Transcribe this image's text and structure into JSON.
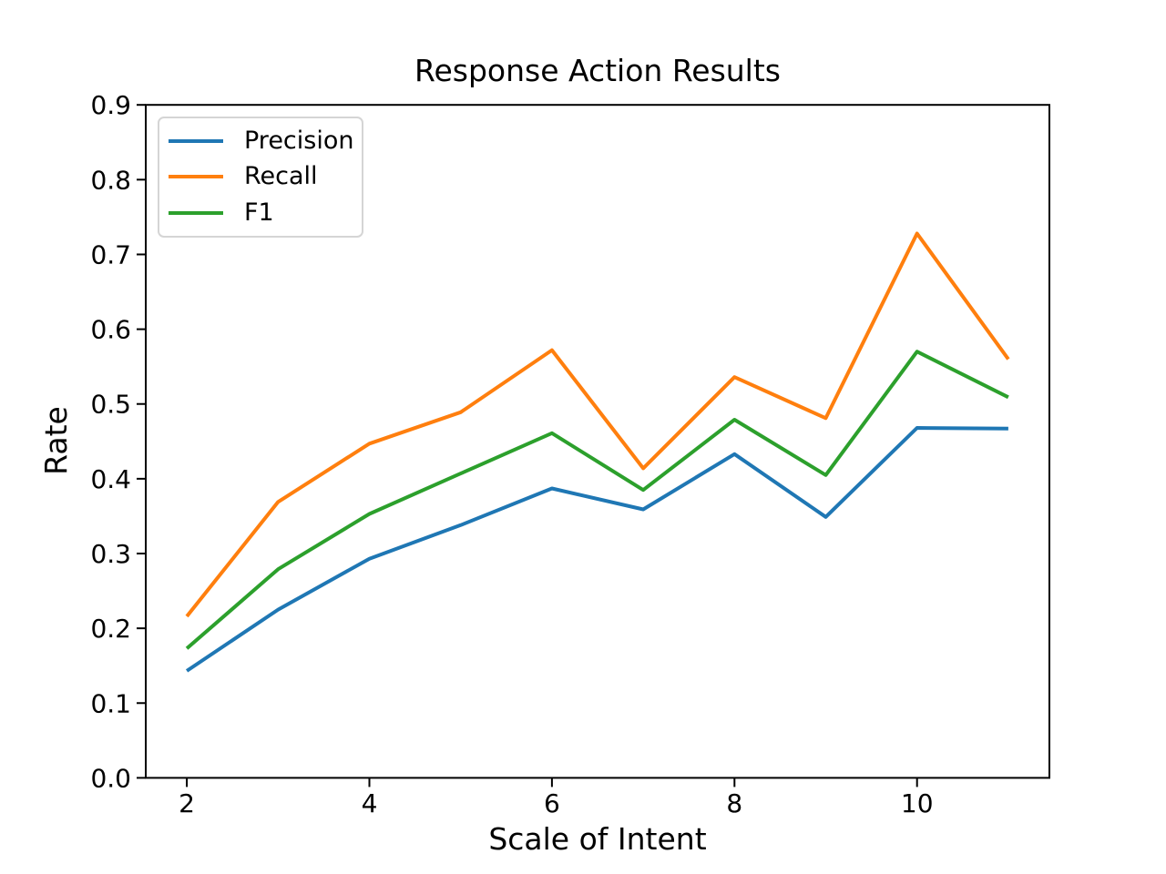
{
  "figure_title": "Response Action Results",
  "chart_data": {
    "type": "line",
    "title": "Response Action Results",
    "xlabel": "Scale of Intent",
    "ylabel": "Rate",
    "x": [
      2,
      3,
      4,
      5,
      6,
      7,
      8,
      9,
      10,
      11
    ],
    "series": [
      {
        "name": "Precision",
        "color": "#1f77b4",
        "values": [
          0.143,
          0.225,
          0.293,
          0.338,
          0.387,
          0.359,
          0.433,
          0.349,
          0.468,
          0.467
        ]
      },
      {
        "name": "Recall",
        "color": "#ff7f0e",
        "values": [
          0.216,
          0.369,
          0.447,
          0.489,
          0.572,
          0.414,
          0.536,
          0.481,
          0.728,
          0.56
        ]
      },
      {
        "name": "F1",
        "color": "#2ca02c",
        "values": [
          0.173,
          0.279,
          0.353,
          0.407,
          0.461,
          0.385,
          0.479,
          0.405,
          0.57,
          0.509
        ]
      }
    ],
    "xticks": [
      2,
      4,
      6,
      8,
      10
    ],
    "yticks": [
      0.0,
      0.1,
      0.2,
      0.3,
      0.4,
      0.5,
      0.6,
      0.7,
      0.8,
      0.9
    ],
    "xlim": [
      1.55,
      11.45
    ],
    "ylim": [
      0.0,
      0.9
    ],
    "grid": false,
    "legend_position": "upper left",
    "line_width": 4,
    "spine_color": "#000000",
    "background_color": "#ffffff"
  }
}
